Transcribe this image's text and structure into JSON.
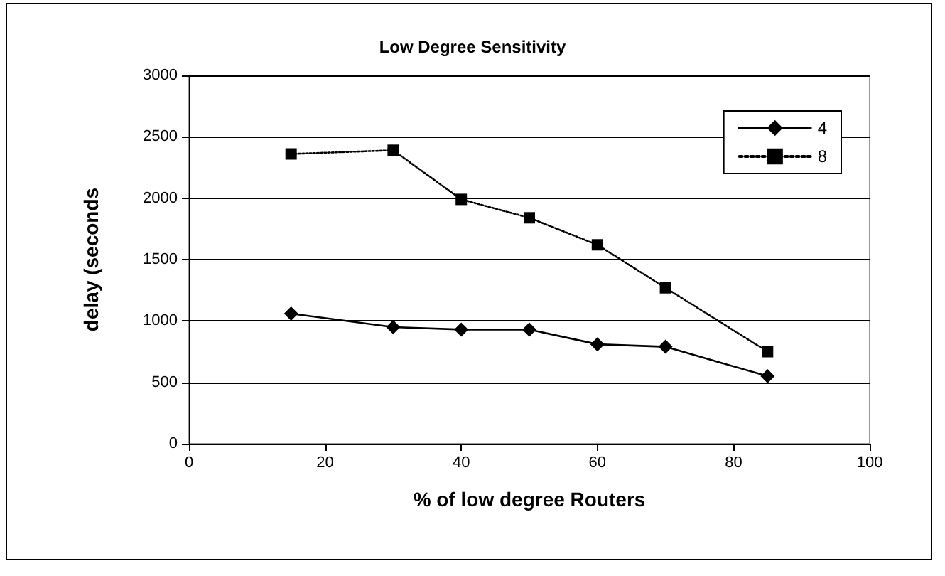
{
  "chart_data": {
    "type": "line",
    "title": "Low Degree Sensitivity",
    "xlabel": "% of low degree Routers",
    "ylabel": "delay (seconds",
    "x": [
      15,
      30,
      40,
      50,
      60,
      70,
      85
    ],
    "series": [
      {
        "name": "4",
        "color": "#000000",
        "marker": "diamond",
        "line_style": "solid",
        "values": [
          1060,
          950,
          930,
          930,
          810,
          790,
          550
        ]
      },
      {
        "name": "8",
        "color": "#000000",
        "marker": "square",
        "line_style": "dotted",
        "values": [
          2360,
          2390,
          1990,
          1840,
          1620,
          1270,
          750
        ]
      }
    ],
    "xlim": [
      0,
      100
    ],
    "xticks": [
      0,
      20,
      40,
      60,
      80,
      100
    ],
    "ylim": [
      0,
      3000
    ],
    "yticks": [
      0,
      500,
      1000,
      1500,
      2000,
      2500,
      3000
    ],
    "grid": "y",
    "legend": "top right"
  }
}
